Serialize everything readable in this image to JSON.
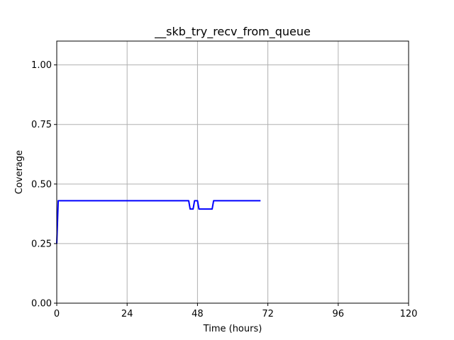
{
  "chart_data": {
    "type": "line",
    "title": "__skb_try_recv_from_queue",
    "xlabel": "Time (hours)",
    "ylabel": "Coverage",
    "xlim": [
      0,
      120
    ],
    "ylim": [
      0,
      1.1
    ],
    "xticks": [
      0,
      24,
      48,
      72,
      96,
      120
    ],
    "xtick_labels": [
      "0",
      "24",
      "48",
      "72",
      "96",
      "120"
    ],
    "yticks": [
      0.0,
      0.25,
      0.5,
      0.75,
      1.0
    ],
    "ytick_labels": [
      "0.00",
      "0.25",
      "0.50",
      "0.75",
      "1.00"
    ],
    "grid": true,
    "legend": "none",
    "series": [
      {
        "color": "#0000ff",
        "x": [
          0,
          0.5,
          1,
          5,
          10,
          20,
          30,
          40,
          45,
          45.5,
          46.5,
          47,
          48,
          48.5,
          49.5,
          50,
          52,
          53,
          53.5,
          54,
          60,
          65,
          69.5
        ],
        "y": [
          0.25,
          0.43,
          0.43,
          0.43,
          0.43,
          0.43,
          0.43,
          0.43,
          0.43,
          0.395,
          0.395,
          0.43,
          0.43,
          0.395,
          0.395,
          0.395,
          0.395,
          0.395,
          0.43,
          0.43,
          0.43,
          0.43,
          0.43
        ]
      }
    ]
  }
}
